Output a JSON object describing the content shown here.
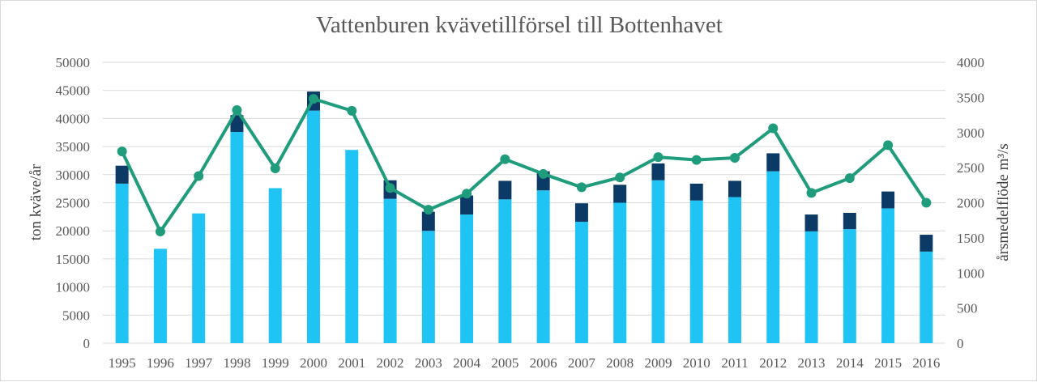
{
  "chart_data": {
    "type": "bar",
    "title": "Vattenburen kvävetillförsel till Bottenhavet",
    "ylabel_left": "ton kväve/år",
    "ylabel_right": "årsmedelflöde m³/s",
    "categories": [
      "1995",
      "1996",
      "1997",
      "1998",
      "1999",
      "2000",
      "2001",
      "2002",
      "2003",
      "2004",
      "2005",
      "2006",
      "2007",
      "2008",
      "2009",
      "2010",
      "2011",
      "2012",
      "2013",
      "2014",
      "2015",
      "2016"
    ],
    "ylim_left": [
      0,
      50000
    ],
    "yticks_left": [
      0,
      5000,
      10000,
      15000,
      20000,
      25000,
      30000,
      35000,
      40000,
      45000,
      50000
    ],
    "ylim_right": [
      0,
      4000
    ],
    "yticks_right": [
      0,
      500,
      1000,
      1500,
      2000,
      2500,
      3000,
      3500,
      4000
    ],
    "series": [
      {
        "type": "bar-stacked",
        "axis": "left",
        "color": "#1fc4f4",
        "values": [
          28400,
          16800,
          23100,
          37600,
          27600,
          41400,
          34400,
          25700,
          20000,
          22900,
          25600,
          27200,
          21600,
          25000,
          29000,
          25400,
          26000,
          30600,
          19900,
          20300,
          24000,
          16300
        ]
      },
      {
        "type": "bar-stacked",
        "axis": "left",
        "color": "#0b3a66",
        "values": [
          3200,
          0,
          0,
          3000,
          0,
          3400,
          0,
          3300,
          3400,
          3400,
          3300,
          3400,
          3300,
          3200,
          3000,
          3000,
          2900,
          3200,
          3000,
          2900,
          3000,
          3000
        ]
      },
      {
        "type": "line",
        "axis": "right",
        "color": "#1e9c7c",
        "values": [
          2730,
          1590,
          2380,
          3320,
          2490,
          3480,
          3310,
          2210,
          1900,
          2130,
          2620,
          2410,
          2220,
          2360,
          2650,
          2610,
          2640,
          3060,
          2140,
          2350,
          2820,
          2000
        ]
      }
    ]
  }
}
